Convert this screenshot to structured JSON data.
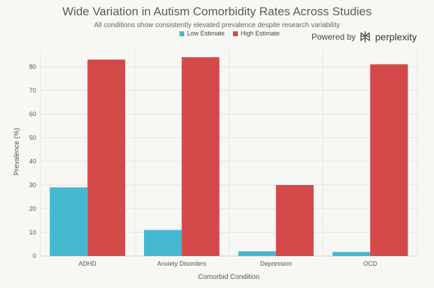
{
  "chart_data": {
    "type": "bar",
    "title": "Wide Variation in Autism Comorbidity Rates Across Studies",
    "subtitle": "All conditions show consistently elevated prevalence despite research variability",
    "xlabel": "Comorbid Condition",
    "ylabel": "Prevalence (%)",
    "ylim": [
      0,
      87
    ],
    "yticks": [
      0,
      10,
      20,
      30,
      40,
      50,
      60,
      70,
      80
    ],
    "categories": [
      "ADHD",
      "Anxiety Disorders",
      "Depression",
      "OCD"
    ],
    "series": [
      {
        "name": "Low Estimate",
        "color": "#45b8cf",
        "values": [
          29,
          11,
          2,
          1.7
        ]
      },
      {
        "name": "High Estimate",
        "color": "#d3494a",
        "values": [
          83,
          84,
          30,
          81
        ]
      }
    ],
    "legend_position": "top-center",
    "grid": true
  },
  "branding": {
    "powered_by": "Powered by",
    "name": "perplexity",
    "icon": "perplexity-logo-icon"
  }
}
